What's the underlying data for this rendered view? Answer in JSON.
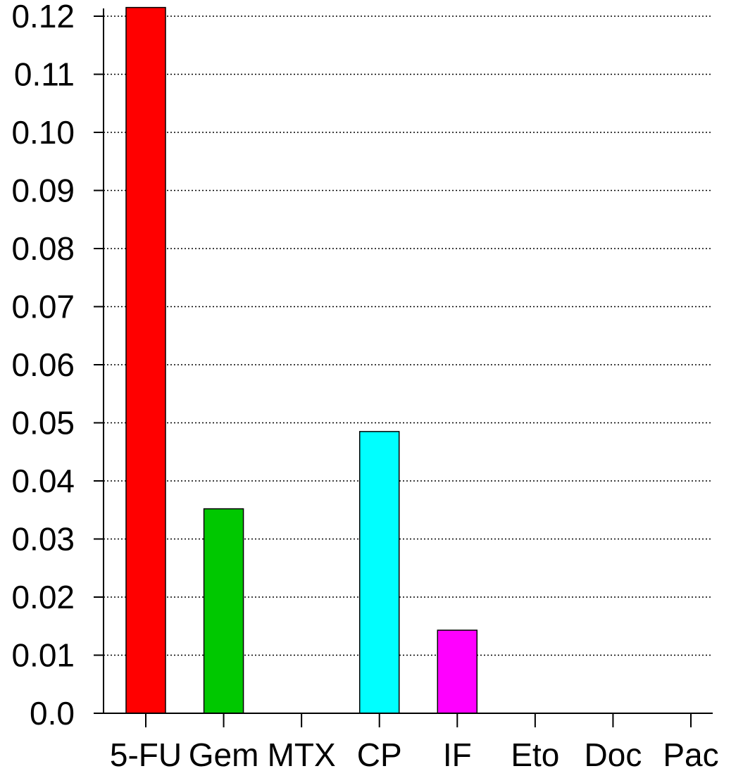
{
  "chart_data": {
    "type": "bar",
    "title": "",
    "xlabel": "",
    "ylabel": "",
    "categories": [
      "5-FU",
      "Gem",
      "MTX",
      "CP",
      "IF",
      "Eto",
      "Doc",
      "Pac"
    ],
    "values": [
      0.1215,
      0.0352,
      0.0,
      0.0485,
      0.0143,
      0.0,
      0.0,
      0.0
    ],
    "colors": [
      "#ff0000",
      "#00c800",
      "#ffffff",
      "#00ffff",
      "#ff00ff",
      "#ffffff",
      "#ffffff",
      "#ffffff"
    ],
    "ylim": [
      0.0,
      0.12
    ],
    "yticks": [
      0.0,
      0.01,
      0.02,
      0.03,
      0.04,
      0.05,
      0.06,
      0.07,
      0.08,
      0.09,
      0.1,
      0.11,
      0.12
    ],
    "ytick_labels": [
      "0.0",
      "0.01",
      "0.02",
      "0.03",
      "0.04",
      "0.05",
      "0.06",
      "0.07",
      "0.08",
      "0.09",
      "0.10",
      "0.11",
      "0.12"
    ],
    "grid": "horizontal-dotted",
    "legend": "none"
  }
}
